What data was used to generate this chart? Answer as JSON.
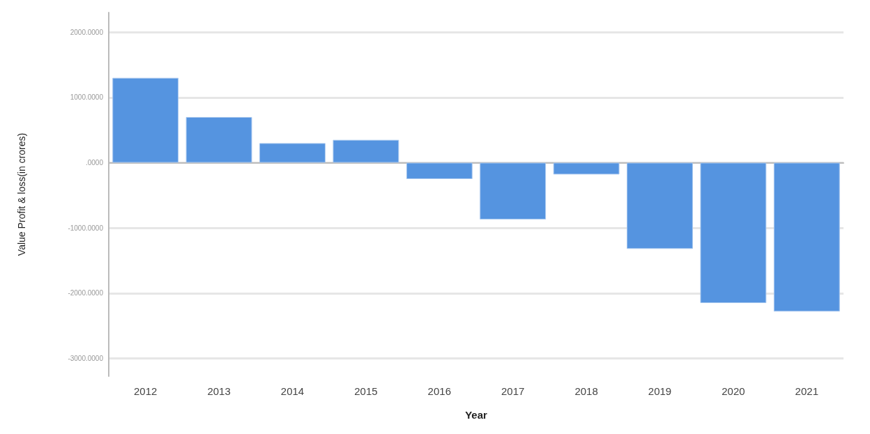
{
  "chart_data": {
    "type": "bar",
    "xlabel": "Year",
    "ylabel": "Value Profit & loss(in crores)",
    "categories": [
      "2012",
      "2013",
      "2014",
      "2015",
      "2016",
      "2017",
      "2018",
      "2019",
      "2020",
      "2021"
    ],
    "values": [
      1300,
      700,
      300,
      350,
      -250,
      -870,
      -180,
      -1320,
      -2150,
      -2280
    ],
    "color": "#5594e0",
    "ylim": [
      -3270,
      2300
    ],
    "yticks": [
      {
        "value": 2000,
        "label": "2000.0000"
      },
      {
        "value": 1000,
        "label": "1000.0000"
      },
      {
        "value": 0,
        "label": ".0000"
      },
      {
        "value": -1000,
        "label": "-1000.0000"
      },
      {
        "value": -2000,
        "label": "-2000.0000"
      },
      {
        "value": -3000,
        "label": "-3000.0000"
      }
    ],
    "grid": "y"
  }
}
